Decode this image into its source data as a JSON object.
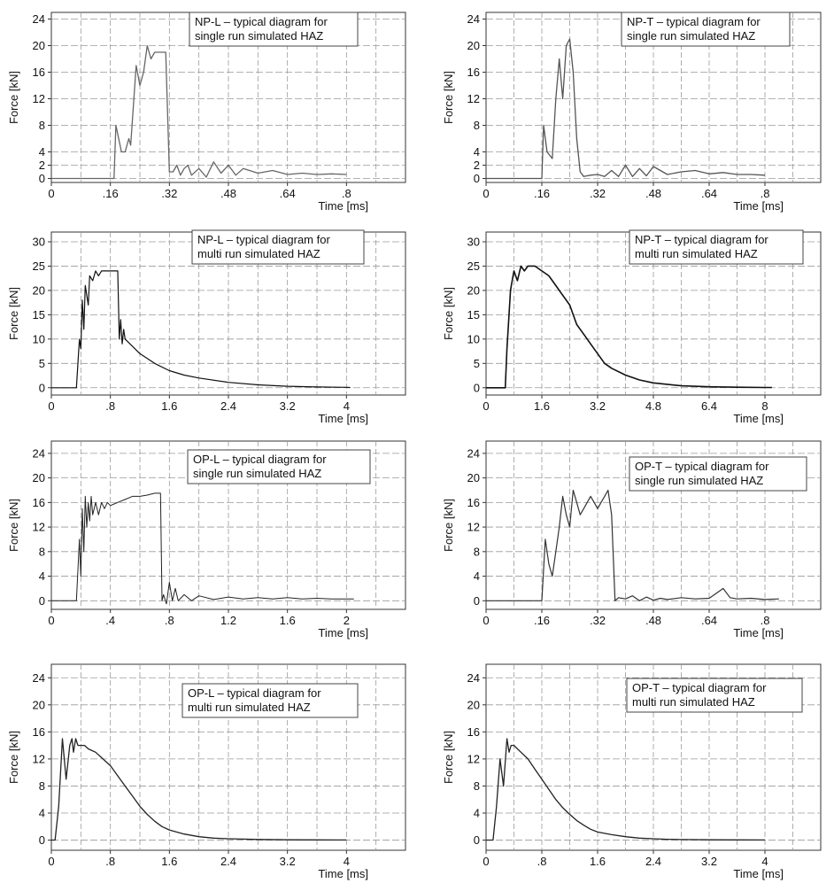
{
  "chart_data": [
    {
      "type": "line",
      "annotation": [
        "NP-L – typical diagram for",
        "single run simulated HAZ"
      ],
      "xlabel": "Time [ms]",
      "ylabel": "Force [kN]",
      "x_ticks": [
        0,
        0.16,
        0.32,
        0.48,
        0.64,
        0.8
      ],
      "x_tick_labels": [
        "0",
        ".16",
        ".32",
        ".48",
        ".64",
        ".8"
      ],
      "y_ticks": [
        0,
        2,
        4,
        8,
        12,
        16,
        20,
        24
      ],
      "y_tick_labels": [
        "0",
        "2",
        "4",
        "8",
        "12",
        "16",
        "20",
        "24"
      ],
      "xlim": [
        0,
        0.96
      ],
      "grid": true,
      "series": [
        {
          "x": [
            0,
            0.17,
            0.175,
            0.19,
            0.2,
            0.21,
            0.215,
            0.23,
            0.24,
            0.25,
            0.26,
            0.27,
            0.28,
            0.29,
            0.3,
            0.31,
            0.32,
            0.33,
            0.34,
            0.35,
            0.36,
            0.37,
            0.38,
            0.4,
            0.42,
            0.44,
            0.46,
            0.48,
            0.5,
            0.52,
            0.56,
            0.6,
            0.64,
            0.68,
            0.72,
            0.76,
            0.8
          ],
          "y": [
            0,
            0,
            8,
            4,
            4,
            6,
            5,
            17,
            14,
            16,
            20,
            18,
            19,
            19,
            19,
            19,
            1,
            1,
            2,
            0.5,
            1.5,
            2,
            0.5,
            1.5,
            0.2,
            2.5,
            0.8,
            2,
            0.5,
            1.5,
            0.8,
            1.2,
            0.6,
            0.8,
            0.6,
            0.7,
            0.6
          ]
        }
      ]
    },
    {
      "type": "line",
      "annotation": [
        "NP-T – typical diagram for",
        "single run simulated HAZ"
      ],
      "xlabel": "Time [ms]",
      "ylabel": "Force [kN]",
      "x_ticks": [
        0,
        0.16,
        0.32,
        0.48,
        0.64,
        0.8
      ],
      "x_tick_labels": [
        "0",
        ".16",
        ".32",
        ".48",
        ".64",
        ".8"
      ],
      "y_ticks": [
        0,
        2,
        4,
        8,
        12,
        16,
        20,
        24
      ],
      "y_tick_labels": [
        "0",
        "2",
        "4",
        "8",
        "12",
        "16",
        "20",
        "24"
      ],
      "xlim": [
        0,
        0.96
      ],
      "grid": true,
      "series": [
        {
          "x": [
            0,
            0.16,
            0.165,
            0.175,
            0.19,
            0.2,
            0.21,
            0.22,
            0.23,
            0.24,
            0.25,
            0.26,
            0.27,
            0.28,
            0.29,
            0.3,
            0.32,
            0.34,
            0.36,
            0.38,
            0.4,
            0.42,
            0.44,
            0.46,
            0.48,
            0.52,
            0.56,
            0.6,
            0.64,
            0.68,
            0.72,
            0.76,
            0.8
          ],
          "y": [
            0,
            0,
            8,
            4,
            3,
            12,
            18,
            12,
            20,
            21,
            16,
            6,
            1,
            0.3,
            0.4,
            0.5,
            0.6,
            0.3,
            1.2,
            0.3,
            2,
            0.3,
            1.5,
            0.4,
            1.8,
            0.6,
            1,
            1.2,
            0.7,
            0.9,
            0.6,
            0.6,
            0.5
          ]
        }
      ]
    },
    {
      "type": "line",
      "annotation": [
        "NP-L – typical diagram for",
        "multi run simulated HAZ"
      ],
      "xlabel": "Time [ms]",
      "ylabel": "Force [kN]",
      "x_ticks": [
        0,
        0.8,
        1.6,
        2.4,
        3.2,
        4
      ],
      "x_tick_labels": [
        "0",
        ".8",
        "1.6",
        "2.4",
        "3.2",
        "4"
      ],
      "y_ticks": [
        0,
        5,
        10,
        15,
        20,
        25,
        30
      ],
      "y_tick_labels": [
        "0",
        "5",
        "10",
        "15",
        "20",
        "25",
        "30"
      ],
      "xlim": [
        0,
        4.8
      ],
      "grid": true,
      "series": [
        {
          "x": [
            0,
            0.34,
            0.36,
            0.38,
            0.4,
            0.42,
            0.44,
            0.46,
            0.5,
            0.52,
            0.56,
            0.6,
            0.64,
            0.68,
            0.72,
            0.8,
            0.88,
            0.9,
            0.92,
            0.94,
            0.96,
            0.98,
            1.0,
            1.1,
            1.2,
            1.4,
            1.6,
            1.8,
            2.0,
            2.4,
            2.8,
            3.2,
            3.6,
            4.0,
            4.05
          ],
          "y": [
            0,
            0,
            5,
            10,
            8,
            18,
            12,
            21,
            17,
            23,
            22,
            24,
            23,
            24,
            24,
            24,
            24,
            24,
            10,
            14,
            9,
            12,
            10,
            8.5,
            7,
            5,
            3.5,
            2.6,
            2,
            1.1,
            0.6,
            0.3,
            0.15,
            0.08,
            0.05
          ]
        }
      ]
    },
    {
      "type": "line",
      "annotation": [
        "NP-T – typical diagram for",
        "multi run simulated HAZ"
      ],
      "xlabel": "Time [ms]",
      "ylabel": "Force [kN]",
      "x_ticks": [
        0,
        1.6,
        3.2,
        4.8,
        6.4,
        8
      ],
      "x_tick_labels": [
        "0",
        "1.6",
        "3.2",
        "4.8",
        "6.4",
        "8"
      ],
      "y_ticks": [
        0,
        5,
        10,
        15,
        20,
        25,
        30
      ],
      "y_tick_labels": [
        "0",
        "5",
        "10",
        "15",
        "20",
        "25",
        "30"
      ],
      "xlim": [
        0,
        9.6
      ],
      "grid": true,
      "series": [
        {
          "x": [
            0,
            0.55,
            0.6,
            0.65,
            0.7,
            0.75,
            0.8,
            0.9,
            1.0,
            1.1,
            1.2,
            1.4,
            1.6,
            1.8,
            2.0,
            2.2,
            2.4,
            2.6,
            2.8,
            3.0,
            3.2,
            3.4,
            3.6,
            4.0,
            4.4,
            4.8,
            5.6,
            6.4,
            7.2,
            8.0,
            8.2
          ],
          "y": [
            0,
            0,
            8,
            14,
            20,
            22,
            24,
            22,
            25,
            24,
            25,
            25,
            24,
            23,
            21,
            19,
            17,
            13,
            11,
            9,
            7,
            5,
            4,
            2.6,
            1.6,
            1,
            0.4,
            0.2,
            0.1,
            0.05,
            0.05
          ]
        }
      ]
    },
    {
      "type": "line",
      "annotation": [
        "OP-L – typical diagram for",
        "single run simulated HAZ"
      ],
      "xlabel": "Time [ms]",
      "ylabel": "Force [kN]",
      "x_ticks": [
        0,
        0.4,
        0.8,
        1.2,
        1.6,
        2
      ],
      "x_tick_labels": [
        "0",
        ".4",
        ".8",
        "1.2",
        "1.6",
        "2"
      ],
      "y_ticks": [
        0,
        4,
        8,
        12,
        16,
        20,
        24
      ],
      "y_tick_labels": [
        "0",
        "4",
        "8",
        "12",
        "16",
        "20",
        "24"
      ],
      "xlim": [
        0,
        2.4
      ],
      "grid": true,
      "series": [
        {
          "x": [
            0,
            0.17,
            0.19,
            0.2,
            0.21,
            0.22,
            0.23,
            0.24,
            0.25,
            0.26,
            0.27,
            0.28,
            0.3,
            0.32,
            0.34,
            0.36,
            0.38,
            0.4,
            0.45,
            0.5,
            0.55,
            0.6,
            0.65,
            0.7,
            0.74,
            0.75,
            0.76,
            0.78,
            0.8,
            0.82,
            0.84,
            0.86,
            0.9,
            0.95,
            1.0,
            1.1,
            1.2,
            1.3,
            1.4,
            1.5,
            1.6,
            1.7,
            1.8,
            1.9,
            2.0,
            2.05
          ],
          "y": [
            0,
            0,
            10,
            4,
            15,
            8,
            17,
            12,
            16,
            13,
            17,
            14,
            16,
            14,
            16,
            15,
            16,
            15.5,
            16,
            16.5,
            17,
            17,
            17.2,
            17.5,
            17.5,
            0,
            1,
            -0.5,
            3,
            0,
            2,
            0,
            1,
            0,
            0.8,
            0.2,
            0.6,
            0.3,
            0.5,
            0.3,
            0.5,
            0.3,
            0.4,
            0.3,
            0.3,
            0.3
          ]
        }
      ]
    },
    {
      "type": "line",
      "annotation": [
        "OP-T – typical diagram for",
        "single run simulated HAZ"
      ],
      "xlabel": "Time [ms]",
      "ylabel": "Force [kN]",
      "x_ticks": [
        0,
        0.16,
        0.32,
        0.48,
        0.64,
        0.8
      ],
      "x_tick_labels": [
        "0",
        ".16",
        ".32",
        ".48",
        ".64",
        ".8"
      ],
      "y_ticks": [
        0,
        4,
        8,
        12,
        16,
        20,
        24
      ],
      "y_tick_labels": [
        "0",
        "4",
        "8",
        "12",
        "16",
        "20",
        "24"
      ],
      "xlim": [
        0,
        0.96
      ],
      "grid": true,
      "series": [
        {
          "x": [
            0,
            0.16,
            0.17,
            0.18,
            0.19,
            0.2,
            0.21,
            0.22,
            0.23,
            0.24,
            0.25,
            0.26,
            0.27,
            0.28,
            0.29,
            0.3,
            0.31,
            0.32,
            0.33,
            0.34,
            0.35,
            0.36,
            0.37,
            0.38,
            0.4,
            0.42,
            0.44,
            0.46,
            0.48,
            0.5,
            0.52,
            0.56,
            0.6,
            0.64,
            0.66,
            0.68,
            0.7,
            0.72,
            0.76,
            0.8,
            0.84
          ],
          "y": [
            0,
            0,
            10,
            6,
            4,
            8,
            12,
            17,
            14,
            12,
            18,
            16,
            14,
            15,
            16,
            17,
            16,
            15,
            16,
            17,
            18,
            14,
            0,
            0.5,
            0.3,
            0.8,
            0,
            0.6,
            0.1,
            0.4,
            0.2,
            0.5,
            0.3,
            0.4,
            1.2,
            2,
            0.5,
            0.3,
            0.4,
            0.2,
            0.3
          ]
        }
      ]
    },
    {
      "type": "line",
      "annotation": [
        "OP-L – typical diagram for",
        "multi run simulated HAZ"
      ],
      "xlabel": "Time [ms]",
      "ylabel": "Force [kN]",
      "x_ticks": [
        0,
        0.8,
        1.6,
        2.4,
        3.2,
        4
      ],
      "x_tick_labels": [
        "0",
        ".8",
        "1.6",
        "2.4",
        "3.2",
        "4"
      ],
      "y_ticks": [
        0,
        4,
        8,
        12,
        16,
        20,
        24
      ],
      "y_tick_labels": [
        "0",
        "4",
        "8",
        "12",
        "16",
        "20",
        "24"
      ],
      "xlim": [
        0,
        4.8
      ],
      "grid": true,
      "series": [
        {
          "x": [
            0,
            0.05,
            0.1,
            0.15,
            0.2,
            0.25,
            0.28,
            0.3,
            0.33,
            0.36,
            0.4,
            0.45,
            0.5,
            0.6,
            0.7,
            0.8,
            0.9,
            1.0,
            1.1,
            1.2,
            1.3,
            1.4,
            1.5,
            1.6,
            1.8,
            2.0,
            2.2,
            2.4,
            2.6,
            2.8,
            3.2,
            3.6,
            4.0
          ],
          "y": [
            0,
            0,
            5,
            15,
            9,
            14,
            15,
            13,
            15,
            14,
            14,
            14,
            13.5,
            13,
            12,
            11,
            9.5,
            8,
            6.5,
            5,
            3.8,
            2.8,
            2,
            1.5,
            0.9,
            0.5,
            0.3,
            0.2,
            0.15,
            0.1,
            0.05,
            0.03,
            0.02
          ]
        }
      ]
    },
    {
      "type": "line",
      "annotation": [
        "OP-T – typical diagram for",
        "multi run simulated HAZ"
      ],
      "xlabel": "Time [ms]",
      "ylabel": "Force [kN]",
      "x_ticks": [
        0,
        0.8,
        1.6,
        2.4,
        3.2,
        4
      ],
      "x_tick_labels": [
        "0",
        ".8",
        "1.6",
        "2.4",
        "3.2",
        "4"
      ],
      "y_ticks": [
        0,
        4,
        8,
        12,
        16,
        20,
        24
      ],
      "y_tick_labels": [
        "0",
        "4",
        "8",
        "12",
        "16",
        "20",
        "24"
      ],
      "xlim": [
        0,
        4.8
      ],
      "grid": true,
      "series": [
        {
          "x": [
            0,
            0.1,
            0.15,
            0.2,
            0.25,
            0.3,
            0.33,
            0.36,
            0.4,
            0.45,
            0.5,
            0.6,
            0.7,
            0.8,
            0.9,
            1.0,
            1.1,
            1.2,
            1.3,
            1.4,
            1.5,
            1.6,
            1.8,
            2.0,
            2.2,
            2.4,
            2.6,
            2.8,
            3.2,
            3.6,
            4.0
          ],
          "y": [
            0,
            0,
            5,
            12,
            8,
            15,
            13,
            14,
            14,
            13.5,
            13,
            12,
            10.5,
            9,
            7.5,
            6,
            4.8,
            3.8,
            2.9,
            2.2,
            1.6,
            1.2,
            0.8,
            0.5,
            0.3,
            0.2,
            0.12,
            0.08,
            0.05,
            0.03,
            0.02
          ]
        }
      ]
    }
  ]
}
